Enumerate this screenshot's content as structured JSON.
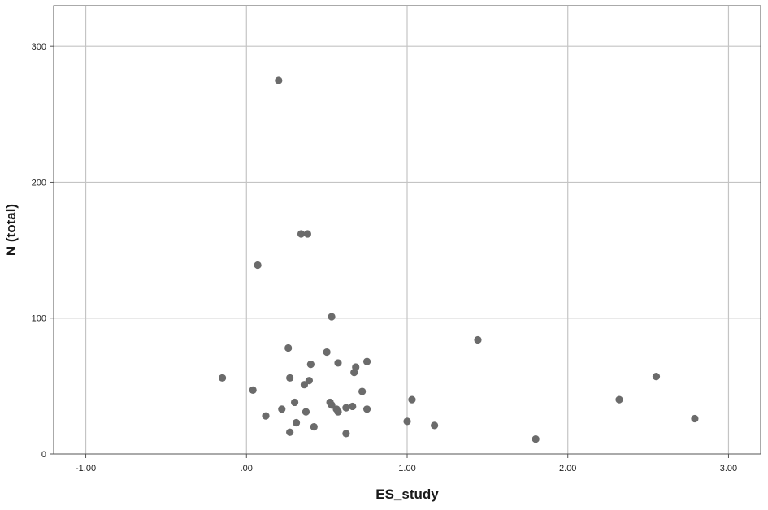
{
  "chart_data": {
    "type": "scatter",
    "title": "",
    "xlabel": "ES_study",
    "ylabel": "N (total)",
    "xlim": [
      -1.2,
      3.2
    ],
    "ylim": [
      0,
      330
    ],
    "xticks": [
      {
        "value": -1,
        "label": "-1.00"
      },
      {
        "value": 0,
        "label": ".00"
      },
      {
        "value": 1,
        "label": "1.00"
      },
      {
        "value": 2,
        "label": "2.00"
      },
      {
        "value": 3,
        "label": "3.00"
      }
    ],
    "yticks": [
      {
        "value": 0,
        "label": "0"
      },
      {
        "value": 100,
        "label": "100"
      },
      {
        "value": 200,
        "label": "200"
      },
      {
        "value": 300,
        "label": "300"
      }
    ],
    "grid": true,
    "marker_color": "#6b6b6b",
    "gridline_color": "#c4c4c4",
    "points": [
      {
        "x": -0.15,
        "y": 56
      },
      {
        "x": 0.04,
        "y": 47
      },
      {
        "x": 0.07,
        "y": 139
      },
      {
        "x": 0.12,
        "y": 28
      },
      {
        "x": 0.2,
        "y": 275
      },
      {
        "x": 0.22,
        "y": 33
      },
      {
        "x": 0.26,
        "y": 78
      },
      {
        "x": 0.27,
        "y": 56
      },
      {
        "x": 0.27,
        "y": 16
      },
      {
        "x": 0.3,
        "y": 38
      },
      {
        "x": 0.31,
        "y": 23
      },
      {
        "x": 0.34,
        "y": 162
      },
      {
        "x": 0.36,
        "y": 51
      },
      {
        "x": 0.37,
        "y": 31
      },
      {
        "x": 0.38,
        "y": 162
      },
      {
        "x": 0.39,
        "y": 54
      },
      {
        "x": 0.4,
        "y": 66
      },
      {
        "x": 0.42,
        "y": 20
      },
      {
        "x": 0.5,
        "y": 75
      },
      {
        "x": 0.52,
        "y": 38
      },
      {
        "x": 0.53,
        "y": 101
      },
      {
        "x": 0.53,
        "y": 36
      },
      {
        "x": 0.56,
        "y": 33
      },
      {
        "x": 0.57,
        "y": 31
      },
      {
        "x": 0.57,
        "y": 67
      },
      {
        "x": 0.62,
        "y": 34
      },
      {
        "x": 0.62,
        "y": 15
      },
      {
        "x": 0.66,
        "y": 35
      },
      {
        "x": 0.67,
        "y": 60
      },
      {
        "x": 0.68,
        "y": 64
      },
      {
        "x": 0.72,
        "y": 46
      },
      {
        "x": 0.75,
        "y": 68
      },
      {
        "x": 0.75,
        "y": 33
      },
      {
        "x": 1.0,
        "y": 24
      },
      {
        "x": 1.03,
        "y": 40
      },
      {
        "x": 1.17,
        "y": 21
      },
      {
        "x": 1.44,
        "y": 84
      },
      {
        "x": 1.8,
        "y": 11
      },
      {
        "x": 2.32,
        "y": 40
      },
      {
        "x": 2.55,
        "y": 57
      },
      {
        "x": 2.79,
        "y": 26
      }
    ]
  }
}
